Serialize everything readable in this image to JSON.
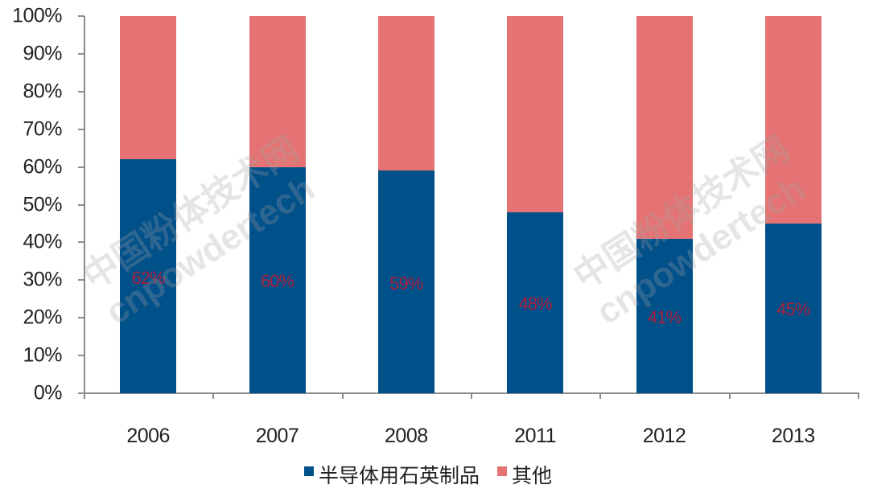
{
  "chart_data": {
    "type": "bar",
    "stacked": true,
    "percent_stacked": true,
    "title": "",
    "xlabel": "",
    "ylabel": "",
    "categories": [
      "2006",
      "2007",
      "2008",
      "2011",
      "2012",
      "2013"
    ],
    "series": [
      {
        "name": "半导体用石英制品",
        "color": "#00508a",
        "values": [
          62,
          60,
          59,
          48,
          41,
          45
        ]
      },
      {
        "name": "其他",
        "color": "#e57373",
        "values": [
          38,
          40,
          41,
          52,
          59,
          55
        ]
      }
    ],
    "data_labels": [
      "62%",
      "60%",
      "59%",
      "48%",
      "41%",
      "45%"
    ],
    "data_label_color": "#a8213f",
    "ylim": [
      0,
      100
    ],
    "yticks": [
      "0%",
      "10%",
      "20%",
      "30%",
      "40%",
      "50%",
      "60%",
      "70%",
      "80%",
      "90%",
      "100%"
    ],
    "grid": false,
    "legend_position": "bottom"
  },
  "legend": {
    "items": [
      {
        "label": "半导体用石英制品",
        "color": "#00508a"
      },
      {
        "label": "其他",
        "color": "#e57373"
      }
    ]
  },
  "watermark": {
    "line1": "中国粉体技术网",
    "line2": "cnpowdertech"
  }
}
